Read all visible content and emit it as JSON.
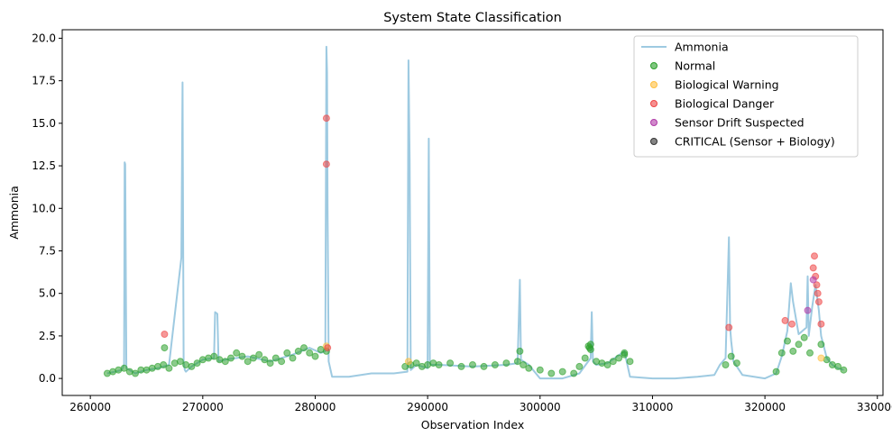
{
  "chart_data": {
    "type": "line",
    "title": "System State Classification",
    "xlabel": "Observation Index",
    "ylabel": "Ammonia",
    "xlim": [
      257500,
      330500
    ],
    "ylim": [
      -1.0,
      20.5
    ],
    "x_ticks": [
      260000,
      270000,
      280000,
      290000,
      300000,
      310000,
      320000,
      330000
    ],
    "x_tick_labels": [
      "260000",
      "270000",
      "280000",
      "290000",
      "300000",
      "310000",
      "320000",
      "330000"
    ],
    "y_ticks": [
      0.0,
      2.5,
      5.0,
      7.5,
      10.0,
      12.5,
      15.0,
      17.5,
      20.0
    ],
    "y_tick_labels": [
      "0.0",
      "2.5",
      "5.0",
      "7.5",
      "10.0",
      "12.5",
      "15.0",
      "17.5",
      "20.0"
    ],
    "grid": false,
    "legend_position": "top-right",
    "legend": [
      {
        "name": "Ammonia",
        "kind": "line",
        "color": "#9ecae1"
      },
      {
        "name": "Normal",
        "kind": "marker",
        "color": "#2ca02c"
      },
      {
        "name": "Biological Warning",
        "kind": "marker",
        "color": "#ffbf3f"
      },
      {
        "name": "Biological Danger",
        "kind": "marker",
        "color": "#ef4444"
      },
      {
        "name": "Sensor Drift Suspected",
        "kind": "marker",
        "color": "#b03aa8"
      },
      {
        "name": "CRITICAL (Sensor + Biology)",
        "kind": "marker",
        "color": "#333333"
      }
    ],
    "series": [
      {
        "name": "Ammonia",
        "kind": "line",
        "color": "#9ecae1",
        "x": [
          261500,
          262200,
          262800,
          263000,
          263050,
          263100,
          263200,
          264000,
          265000,
          266000,
          267000,
          268100,
          268200,
          268300,
          268400,
          268500,
          269000,
          270000,
          271000,
          271100,
          271300,
          271400,
          272000,
          274000,
          276000,
          278000,
          279500,
          280500,
          280900,
          281000,
          281050,
          281100,
          281200,
          281500,
          283000,
          285000,
          287000,
          288200,
          288300,
          288400,
          288500,
          289000,
          290000,
          290100,
          290200,
          290300,
          291000,
          294000,
          297000,
          298000,
          298200,
          298300,
          299000,
          300000,
          302000,
          303500,
          304500,
          304600,
          304700,
          305000,
          306000,
          307500,
          308000,
          310000,
          312000,
          314000,
          315500,
          316000,
          316500,
          316800,
          316900,
          317000,
          317200,
          318000,
          320000,
          321000,
          321500,
          322000,
          322300,
          322500,
          323000,
          323700,
          323800,
          323900,
          324200,
          324500,
          324800,
          325000,
          325500,
          326000,
          326500,
          327000
        ],
        "y": [
          0.3,
          0.4,
          0.5,
          0.8,
          12.7,
          12.6,
          0.6,
          0.3,
          0.5,
          0.6,
          0.8,
          7.1,
          17.4,
          1.0,
          0.5,
          0.4,
          0.7,
          1.1,
          1.2,
          3.9,
          3.8,
          1.0,
          1.1,
          1.3,
          1.0,
          1.4,
          1.8,
          1.5,
          1.6,
          19.5,
          18.0,
          10.0,
          1.0,
          0.1,
          0.1,
          0.3,
          0.3,
          0.4,
          18.7,
          12.8,
          0.5,
          0.8,
          0.6,
          14.1,
          0.9,
          0.8,
          0.8,
          0.7,
          0.8,
          0.9,
          5.8,
          1.1,
          0.8,
          0.0,
          0.0,
          0.3,
          1.2,
          3.9,
          1.0,
          0.8,
          0.9,
          1.6,
          0.1,
          0.0,
          0.0,
          0.1,
          0.2,
          0.8,
          1.2,
          8.3,
          3.0,
          2.2,
          1.0,
          0.2,
          0.0,
          0.3,
          1.3,
          2.8,
          5.6,
          4.5,
          2.6,
          3.0,
          6.0,
          2.5,
          4.2,
          5.5,
          4.0,
          2.5,
          1.2,
          0.8,
          0.6,
          0.5
        ]
      },
      {
        "name": "Normal",
        "kind": "scatter",
        "color": "#2ca02c",
        "x": [
          261500,
          262000,
          262500,
          263000,
          263500,
          264000,
          264500,
          265000,
          265500,
          266000,
          266500,
          267000,
          267500,
          268000,
          268500,
          269000,
          269500,
          270000,
          270500,
          271000,
          271500,
          272000,
          272500,
          273000,
          273500,
          274000,
          274500,
          275000,
          275500,
          276000,
          276500,
          277000,
          277500,
          278000,
          278500,
          279000,
          279500,
          280000,
          280500,
          281000,
          288000,
          288500,
          289000,
          289500,
          290000,
          290500,
          291000,
          292000,
          293000,
          294000,
          295000,
          296000,
          297000,
          298000,
          298500,
          299000,
          300000,
          301000,
          302000,
          303000,
          303500,
          304000,
          304500,
          305000,
          305500,
          306000,
          306500,
          307000,
          307500,
          308000,
          316500,
          317000,
          317500,
          321000,
          321500,
          322000,
          322500,
          323000,
          323500,
          324000,
          325000,
          325500,
          326000,
          326500,
          327000,
          266600,
          298200,
          304300,
          304400,
          304500,
          307500
        ],
        "y": [
          0.3,
          0.4,
          0.5,
          0.6,
          0.4,
          0.3,
          0.5,
          0.5,
          0.6,
          0.7,
          0.8,
          0.6,
          0.9,
          1.0,
          0.8,
          0.7,
          0.9,
          1.1,
          1.2,
          1.3,
          1.1,
          1.0,
          1.2,
          1.5,
          1.3,
          1.0,
          1.2,
          1.4,
          1.1,
          0.9,
          1.2,
          1.0,
          1.5,
          1.2,
          1.6,
          1.8,
          1.5,
          1.3,
          1.7,
          1.6,
          0.7,
          0.8,
          0.9,
          0.7,
          0.8,
          0.9,
          0.8,
          0.9,
          0.7,
          0.8,
          0.7,
          0.8,
          0.9,
          1.0,
          0.8,
          0.6,
          0.5,
          0.3,
          0.4,
          0.3,
          0.7,
          1.2,
          1.7,
          1.0,
          0.9,
          0.8,
          1.0,
          1.2,
          1.5,
          1.0,
          0.8,
          1.3,
          0.9,
          0.4,
          1.5,
          2.2,
          1.6,
          2.0,
          2.4,
          1.5,
          2.0,
          1.1,
          0.8,
          0.7,
          0.5,
          1.8,
          1.6,
          1.9,
          1.8,
          2.0,
          1.4
        ]
      },
      {
        "name": "Biological Warning",
        "kind": "scatter",
        "color": "#ffbf3f",
        "x": [
          281000,
          288300,
          325000
        ],
        "y": [
          1.9,
          1.0,
          1.2
        ]
      },
      {
        "name": "Biological Danger",
        "kind": "scatter",
        "color": "#ef4444",
        "x": [
          266600,
          281000,
          281000,
          281100,
          316800,
          321800,
          322400,
          324300,
          324400,
          324500,
          324600,
          324700,
          324800,
          325000
        ],
        "y": [
          2.6,
          15.3,
          12.6,
          1.8,
          3.0,
          3.4,
          3.2,
          6.5,
          7.2,
          6.0,
          5.5,
          5.0,
          4.5,
          3.2
        ]
      },
      {
        "name": "Sensor Drift Suspected",
        "kind": "scatter",
        "color": "#b03aa8",
        "x": [
          323800,
          324300
        ],
        "y": [
          4.0,
          5.8
        ]
      },
      {
        "name": "CRITICAL (Sensor + Biology)",
        "kind": "scatter",
        "color": "#333333",
        "x": [],
        "y": []
      }
    ]
  }
}
